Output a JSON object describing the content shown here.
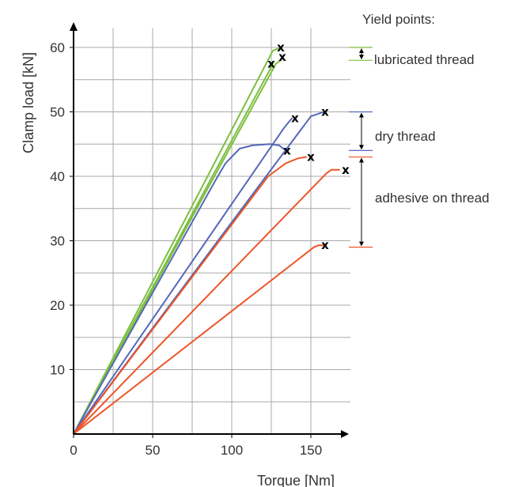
{
  "chart_data": {
    "type": "line",
    "xlabel": "Torque [Nm]",
    "ylabel": "Clamp load [kN]",
    "xlim": [
      0,
      175
    ],
    "ylim": [
      0,
      63
    ],
    "xticks": [
      0,
      50,
      100,
      150
    ],
    "yticks": [
      10,
      20,
      30,
      40,
      50,
      60
    ],
    "grid": true,
    "legend": "right-side annotations",
    "series": [
      {
        "group": "lubricated",
        "color": "#7dbf3f",
        "points": [
          [
            0,
            0
          ],
          [
            126,
            59.5
          ],
          [
            131,
            60
          ]
        ],
        "yield": [
          131,
          60
        ]
      },
      {
        "group": "lubricated",
        "color": "#7dbf3f",
        "points": [
          [
            0,
            0
          ],
          [
            128,
            57.5
          ],
          [
            131,
            58
          ]
        ],
        "yield": [
          132,
          58.5
        ]
      },
      {
        "group": "lubricated",
        "color": "#7dbf3f",
        "points": [
          [
            0,
            0
          ],
          [
            124,
            56.5
          ],
          [
            126,
            57.5
          ]
        ],
        "yield": [
          125,
          57.5
        ]
      },
      {
        "group": "dry",
        "color": "#5468b8",
        "points": [
          [
            0,
            0
          ],
          [
            90,
            39.5
          ],
          [
            96,
            42
          ],
          [
            105,
            44.3
          ],
          [
            113,
            44.8
          ],
          [
            124,
            45
          ],
          [
            130,
            44.8
          ],
          [
            134,
            44
          ]
        ],
        "yield": [
          135,
          44
        ]
      },
      {
        "group": "dry",
        "color": "#5468b8",
        "points": [
          [
            0,
            0
          ],
          [
            133,
            47.5
          ],
          [
            138,
            49
          ]
        ],
        "yield": [
          140,
          49
        ]
      },
      {
        "group": "dry",
        "color": "#5468b8",
        "points": [
          [
            0,
            0
          ],
          [
            150,
            49.3
          ],
          [
            157,
            49.9
          ],
          [
            159,
            49.9
          ]
        ],
        "yield": [
          159,
          50
        ]
      },
      {
        "group": "adhesive",
        "color": "#ee5529",
        "points": [
          [
            0,
            0
          ],
          [
            123,
            40
          ],
          [
            134,
            42
          ],
          [
            142,
            42.8
          ],
          [
            147,
            43
          ]
        ],
        "yield": [
          150,
          43
        ]
      },
      {
        "group": "adhesive",
        "color": "#ee5529",
        "points": [
          [
            0,
            0
          ],
          [
            160,
            40.5
          ],
          [
            163,
            41
          ],
          [
            168,
            41
          ]
        ],
        "yield": [
          172,
          41
        ]
      },
      {
        "group": "adhesive",
        "color": "#ee5529",
        "points": [
          [
            0,
            0
          ],
          [
            152,
            29
          ],
          [
            155,
            29.3
          ],
          [
            158,
            29.3
          ]
        ],
        "yield": [
          159,
          29.3
        ]
      }
    ],
    "annotations": {
      "title": "Yield points:",
      "lubricated_label": "lubricated thread",
      "dry_label": "dry thread",
      "adhesive_label": "adhesive on thread",
      "lubricated_range": [
        58,
        60
      ],
      "dry_range": [
        44,
        50
      ],
      "adhesive_range": [
        29,
        43
      ]
    },
    "marker_symbol": "x"
  }
}
